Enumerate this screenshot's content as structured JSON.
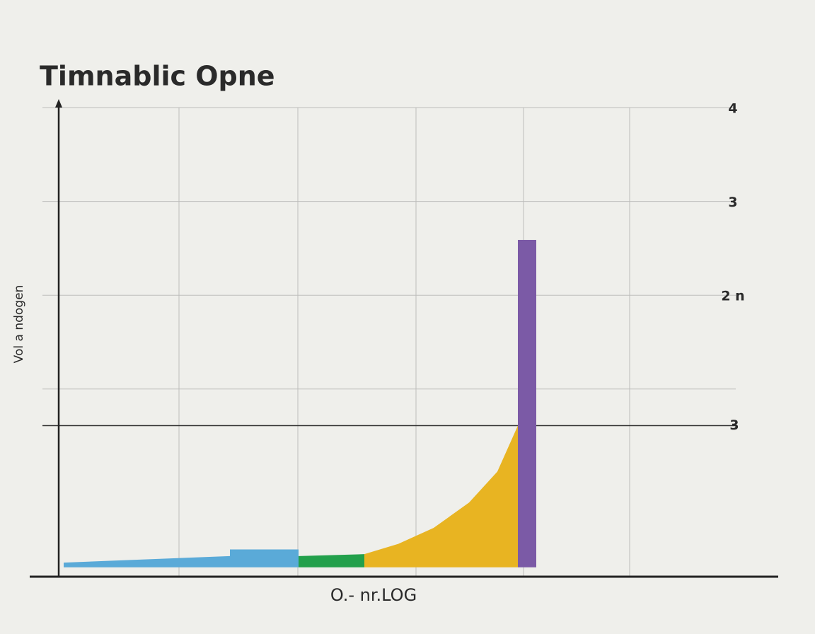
{
  "chart_data": {
    "type": "area",
    "title": "Timnablic Opne",
    "xlabel": "O.- nr.LOG",
    "ylabel": "Vol a ndogen",
    "xlim": [
      0,
      1017
    ],
    "xgrid": [
      170,
      338,
      505,
      657,
      807
    ],
    "ylim": [
      -1,
      4
    ],
    "yticks": [
      4,
      3,
      {
        "value": 2,
        "label": "2 n"
      }
    ],
    "reference_lines": [
      {
        "value": 1
      },
      {
        "value": 0.61,
        "label": "3"
      }
    ],
    "baseline": -0.9,
    "grid": true,
    "series": [
      {
        "color": "#5aaad8",
        "x": [
          7,
          242,
          242,
          339
        ],
        "values": [
          -0.85,
          -0.78,
          -0.71,
          -0.71
        ]
      },
      {
        "color": "#22a04b",
        "x": [
          339,
          432
        ],
        "values": [
          -0.78,
          -0.76
        ]
      },
      {
        "color": "#e8b422",
        "x": [
          432,
          480,
          530,
          580,
          620,
          649
        ],
        "values": [
          -0.76,
          -0.65,
          -0.48,
          -0.21,
          0.12,
          0.61
        ]
      },
      {
        "color": "#7b5aa6",
        "x": [
          649,
          675
        ],
        "values": [
          2.59,
          2.59
        ]
      }
    ]
  }
}
